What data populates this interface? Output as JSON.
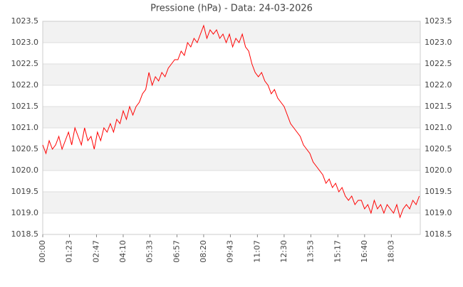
{
  "chart_data": {
    "type": "line",
    "title": "Pressione (hPa) - Data: 24-03-2026",
    "x": [
      "00:00",
      "00:10",
      "00:20",
      "00:30",
      "00:40",
      "00:50",
      "01:00",
      "01:10",
      "01:20",
      "01:30",
      "01:40",
      "01:50",
      "02:00",
      "02:10",
      "02:20",
      "02:30",
      "02:40",
      "02:50",
      "03:00",
      "03:10",
      "03:20",
      "03:30",
      "03:40",
      "03:50",
      "04:00",
      "04:10",
      "04:20",
      "04:30",
      "04:40",
      "04:50",
      "05:00",
      "05:10",
      "05:20",
      "05:30",
      "05:40",
      "05:50",
      "06:00",
      "06:10",
      "06:20",
      "06:30",
      "06:40",
      "06:50",
      "07:00",
      "07:10",
      "07:20",
      "07:30",
      "07:40",
      "07:50",
      "08:00",
      "08:10",
      "08:20",
      "08:30",
      "08:40",
      "08:50",
      "09:00",
      "09:10",
      "09:20",
      "09:30",
      "09:40",
      "09:50",
      "10:00",
      "10:10",
      "10:20",
      "10:30",
      "10:40",
      "10:50",
      "11:00",
      "11:10",
      "11:20",
      "11:30",
      "11:40",
      "11:50",
      "12:00",
      "12:10",
      "12:20",
      "12:30",
      "12:40",
      "12:50",
      "13:00",
      "13:10",
      "13:20",
      "13:30",
      "13:40",
      "13:50",
      "14:00",
      "14:10",
      "14:20",
      "14:30",
      "14:40",
      "14:50",
      "15:00",
      "15:10",
      "15:20",
      "15:30",
      "15:40",
      "15:50",
      "16:00",
      "16:10",
      "16:20",
      "16:30",
      "16:40",
      "16:50",
      "17:00",
      "17:10",
      "17:20",
      "17:30",
      "17:40",
      "17:50",
      "18:00",
      "18:10",
      "18:20",
      "18:30",
      "18:40",
      "18:50",
      "19:00",
      "19:10",
      "19:20",
      "19:30"
    ],
    "values": [
      1020.6,
      1020.4,
      1020.7,
      1020.5,
      1020.6,
      1020.8,
      1020.5,
      1020.7,
      1020.9,
      1020.6,
      1021.0,
      1020.8,
      1020.6,
      1021.0,
      1020.7,
      1020.8,
      1020.5,
      1020.9,
      1020.7,
      1021.0,
      1020.9,
      1021.1,
      1020.9,
      1021.2,
      1021.1,
      1021.4,
      1021.2,
      1021.5,
      1021.3,
      1021.5,
      1021.6,
      1021.8,
      1021.9,
      1022.3,
      1022.0,
      1022.2,
      1022.1,
      1022.3,
      1022.2,
      1022.4,
      1022.5,
      1022.6,
      1022.6,
      1022.8,
      1022.7,
      1023.0,
      1022.9,
      1023.1,
      1023.0,
      1023.2,
      1023.4,
      1023.1,
      1023.3,
      1023.2,
      1023.3,
      1023.1,
      1023.2,
      1023.0,
      1023.2,
      1022.9,
      1023.1,
      1023.0,
      1023.2,
      1022.9,
      1022.8,
      1022.5,
      1022.3,
      1022.2,
      1022.3,
      1022.1,
      1022.0,
      1021.8,
      1021.9,
      1021.7,
      1021.6,
      1021.5,
      1021.3,
      1021.1,
      1021.0,
      1020.9,
      1020.8,
      1020.6,
      1020.5,
      1020.4,
      1020.2,
      1020.1,
      1020.0,
      1019.9,
      1019.7,
      1019.8,
      1019.6,
      1019.7,
      1019.5,
      1019.6,
      1019.4,
      1019.3,
      1019.4,
      1019.2,
      1019.3,
      1019.3,
      1019.1,
      1019.2,
      1019.0,
      1019.3,
      1019.1,
      1019.2,
      1019.0,
      1019.2,
      1019.1,
      1019.0,
      1019.2,
      1018.9,
      1019.1,
      1019.2,
      1019.1,
      1019.3,
      1019.2,
      1019.4
    ],
    "color": "#ff0000",
    "xlim": [
      "00:00",
      "19:33"
    ],
    "xticks": [
      "00:00",
      "01:23",
      "02:47",
      "04:10",
      "05:33",
      "06:57",
      "08:20",
      "09:43",
      "11:07",
      "12:30",
      "13:53",
      "15:17",
      "16:40",
      "18:03"
    ],
    "ylim": [
      1018.5,
      1023.5
    ],
    "yticks": [
      1018.5,
      {
        "value": 1019,
        "label": "1019.0"
      },
      1019.5,
      {
        "value": 1020,
        "label": "1020.0"
      },
      1020.5,
      {
        "value": 1021,
        "label": "1021.0"
      },
      1021.5,
      {
        "value": 1022,
        "label": "1022.0"
      },
      1022.5,
      {
        "value": 1023,
        "label": "1023.0"
      },
      1023.5
    ],
    "grid": true,
    "banded": true
  }
}
